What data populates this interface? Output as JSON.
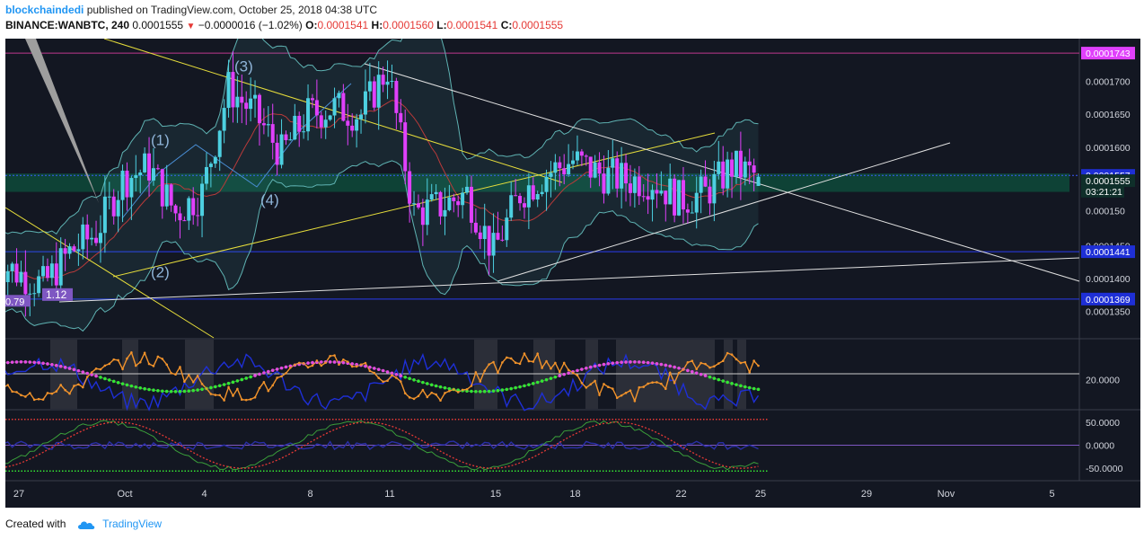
{
  "header": {
    "author": "blockchaindedi",
    "published_text": "published on TradingView.com, October 25, 2018 04:38 UTC",
    "symbol": "BINANCE:WANBTC, 240",
    "last": "0.0001555",
    "change": "−0.0000016 (−1.02%)",
    "open_label": "O:",
    "open": "0.0001541",
    "high_label": "H:",
    "high": "0.0001560",
    "low_label": "L:",
    "low": "0.0001541",
    "close_label": "C:",
    "close": "0.0001555"
  },
  "footer": {
    "created_with": "Created with",
    "brand": "TradingView"
  },
  "colors": {
    "bg": "#131722",
    "bull": "#4dd0e1",
    "bear": "#e040fb",
    "yellow": "#e6dd3b",
    "white": "#e0e0e0",
    "zone": "#0e4a3a",
    "bb": "#5fb3b3",
    "blue": "#1e2fd6",
    "orange": "#f0922b",
    "green": "#33e533",
    "magenta": "#e34be0",
    "red": "#e53935",
    "purple": "#7e57c2"
  },
  "chart_data": {
    "type": "candlestick",
    "price_axis": {
      "range": [
        0.000131,
        0.0001765
      ],
      "ticks": [
        "0.0001700",
        "0.0001650",
        "0.0001600",
        "0.0001400",
        "0.0001350"
      ],
      "partial_ticks": [
        {
          "label": "0.000150",
          "value": 0.0001503
        },
        {
          "label": "0.0001450",
          "value": 0.000145
        }
      ],
      "badges": [
        {
          "label": "0.0001743",
          "value": 0.0001743,
          "color": "#e040fb",
          "text_color": "#ffffff"
        },
        {
          "label": "0.0001557",
          "value": 0.0001557,
          "color": "#1e2fd6",
          "text_color": "#ffffff"
        },
        {
          "label": "0.0001555",
          "value": 0.0001549,
          "color": "#0f2f2a",
          "text_color": "#ffffff"
        },
        {
          "label": "03:21:21",
          "value": 0.0001533,
          "color": "#0f2f2a",
          "text_color": "#ffffff"
        },
        {
          "label": "0.0001441",
          "value": 0.0001441,
          "color": "#1e2fd6",
          "text_color": "#ffffff"
        },
        {
          "label": "0.0001369",
          "value": 0.0001369,
          "color": "#1e2fd6",
          "text_color": "#ffffff"
        }
      ]
    },
    "x_axis": {
      "labels": [
        {
          "label": "27",
          "date": "2018-09-27"
        },
        {
          "label": "Oct",
          "date": "2018-10-01"
        },
        {
          "label": "4",
          "date": "2018-10-04"
        },
        {
          "label": "8",
          "date": "2018-10-08"
        },
        {
          "label": "11",
          "date": "2018-10-11"
        },
        {
          "label": "15",
          "date": "2018-10-15"
        },
        {
          "label": "18",
          "date": "2018-10-18"
        },
        {
          "label": "22",
          "date": "2018-10-22"
        },
        {
          "label": "25",
          "date": "2018-10-25"
        },
        {
          "label": "29",
          "date": "2018-10-29"
        },
        {
          "label": "Nov",
          "date": "2018-11-01"
        },
        {
          "label": "5",
          "date": "2018-11-05"
        }
      ]
    },
    "close_path": [
      {
        "date": "2018-09-26",
        "close": 0.000143
      },
      {
        "date": "2018-09-27",
        "close": 0.000141
      },
      {
        "date": "2018-09-28",
        "close": 0.000139
      },
      {
        "date": "2018-09-29",
        "close": 0.000144
      },
      {
        "date": "2018-09-30",
        "close": 0.000147
      },
      {
        "date": "2018-10-01",
        "close": 0.000155
      },
      {
        "date": "2018-10-02",
        "close": 0.000157
      },
      {
        "date": "2018-10-03",
        "close": 0.00015
      },
      {
        "date": "2018-10-04",
        "close": 0.000153
      },
      {
        "date": "2018-10-05",
        "close": 0.000169
      },
      {
        "date": "2018-10-06",
        "close": 0.000165
      },
      {
        "date": "2018-10-07",
        "close": 0.000159
      },
      {
        "date": "2018-10-08",
        "close": 0.000165
      },
      {
        "date": "2018-10-09",
        "close": 0.000166
      },
      {
        "date": "2018-10-10",
        "close": 0.000165
      },
      {
        "date": "2018-10-11",
        "close": 0.000172
      },
      {
        "date": "2018-10-12",
        "close": 0.00015
      },
      {
        "date": "2018-10-13",
        "close": 0.000151
      },
      {
        "date": "2018-10-14",
        "close": 0.000153
      },
      {
        "date": "2018-10-15",
        "close": 0.000144
      },
      {
        "date": "2018-10-16",
        "close": 0.000153
      },
      {
        "date": "2018-10-17",
        "close": 0.000156
      },
      {
        "date": "2018-10-18",
        "close": 0.000158
      },
      {
        "date": "2018-10-19",
        "close": 0.000156
      },
      {
        "date": "2018-10-20",
        "close": 0.000155
      },
      {
        "date": "2018-10-21",
        "close": 0.000155
      },
      {
        "date": "2018-10-22",
        "close": 0.000152
      },
      {
        "date": "2018-10-23",
        "close": 0.000153
      },
      {
        "date": "2018-10-24",
        "close": 0.000157
      },
      {
        "date": "2018-10-25",
        "close": 0.0001555
      }
    ],
    "horizontal_levels": [
      0.0001743,
      0.0001557,
      0.0001441,
      0.0001369
    ],
    "zone": [
      0.000156,
      0.0001532
    ],
    "annotations": [
      {
        "label": "(1)",
        "date": "2018-10-01",
        "price": 0.0001603
      },
      {
        "label": "(2)",
        "date": "2018-10-01",
        "price": 0.0001402
      },
      {
        "label": "(3)",
        "date": "2018-10-05",
        "price": 0.0001715
      },
      {
        "label": "(4)",
        "date": "2018-10-05",
        "price": 0.0001512
      }
    ],
    "left_labels": [
      {
        "label": "0.79",
        "price": 0.0001367
      },
      {
        "label": "1.12",
        "price": 0.0001369
      }
    ],
    "dmi_panel": {
      "tick": "20.0000"
    },
    "osc_panel": {
      "ticks": [
        "50.0000",
        "0.0000",
        "-50.0000"
      ]
    }
  }
}
